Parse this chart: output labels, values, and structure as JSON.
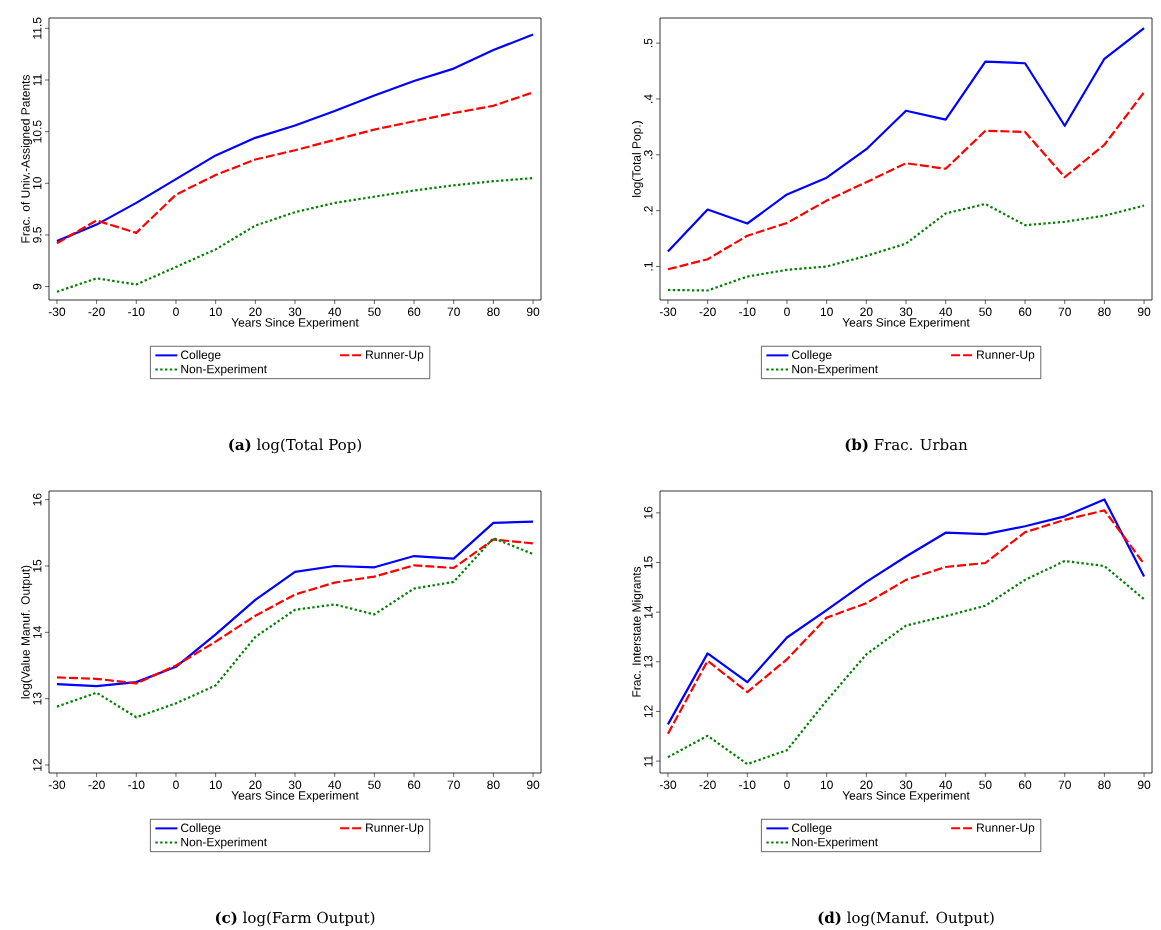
{
  "chart_data": [
    {
      "type": "line",
      "title": "**(a)** log(Total Pop)",
      "xlabel": "Years Since Experiment",
      "ylabel": "Frac. of Univ.-Assigned Patents",
      "legend": "bottom",
      "x": [
        -30,
        -20,
        -10,
        0,
        10,
        20,
        30,
        40,
        50,
        60,
        70,
        80,
        90
      ],
      "xlim": [
        -32,
        92
      ],
      "ylim": [
        8.87,
        11.6
      ],
      "xticks": [
        -30,
        -20,
        -10,
        0,
        10,
        20,
        30,
        40,
        50,
        60,
        70,
        80,
        90
      ],
      "yticks": [
        9,
        9.5,
        10,
        10.5,
        11,
        11.5
      ],
      "series": [
        {
          "name": "College",
          "color": "#0000ff",
          "line_style": "solid",
          "values": [
            9.44,
            9.6,
            9.81,
            10.04,
            10.27,
            10.44,
            10.56,
            10.7,
            10.85,
            10.99,
            11.11,
            11.29,
            11.44
          ]
        },
        {
          "name": "Runner-Up",
          "color": "#ff0000",
          "line_style": "dashed",
          "values": [
            9.42,
            9.64,
            9.52,
            9.89,
            10.08,
            10.23,
            10.32,
            10.42,
            10.52,
            10.6,
            10.68,
            10.75,
            10.88
          ]
        },
        {
          "name": "Non-Experiment",
          "color": "#008000",
          "line_style": "dotted",
          "values": [
            8.95,
            9.08,
            9.02,
            9.19,
            9.36,
            9.59,
            9.72,
            9.81,
            9.87,
            9.93,
            9.98,
            10.02,
            10.05
          ]
        }
      ]
    },
    {
      "type": "line",
      "title": "**(b)** Frac. Urban",
      "xlabel": "Years Since Experiment",
      "ylabel": "log(Total Pop.)",
      "legend": "bottom",
      "x": [
        -30,
        -20,
        -10,
        0,
        10,
        20,
        30,
        40,
        50,
        60,
        70,
        80,
        90
      ],
      "xlim": [
        -32,
        92
      ],
      "ylim": [
        0.04,
        0.545
      ],
      "xticks": [
        -30,
        -20,
        -10,
        0,
        10,
        20,
        30,
        40,
        50,
        60,
        70,
        80,
        90
      ],
      "yticks": [
        {
          "value": 0.1,
          "label": ".1"
        },
        {
          "value": 0.2,
          "label": ".2"
        },
        {
          "value": 0.3,
          "label": ".3"
        },
        {
          "value": 0.4,
          "label": ".4"
        },
        {
          "value": 0.5,
          "label": ".5"
        }
      ],
      "series": [
        {
          "name": "College",
          "color": "#0000ff",
          "line_style": "solid",
          "values": [
            0.127,
            0.202,
            0.177,
            0.229,
            0.259,
            0.31,
            0.379,
            0.363,
            0.467,
            0.464,
            0.352,
            0.472,
            0.527
          ]
        },
        {
          "name": "Runner-Up",
          "color": "#ff0000",
          "line_style": "dashed",
          "values": [
            0.095,
            0.113,
            0.155,
            0.178,
            0.218,
            0.251,
            0.285,
            0.275,
            0.343,
            0.341,
            0.26,
            0.318,
            0.412
          ]
        },
        {
          "name": "Non-Experiment",
          "color": "#008000",
          "line_style": "dotted",
          "values": [
            0.058,
            0.057,
            0.082,
            0.094,
            0.1,
            0.119,
            0.141,
            0.195,
            0.212,
            0.174,
            0.18,
            0.191,
            0.209
          ]
        }
      ]
    },
    {
      "type": "line",
      "title": "**(c)** log(Farm Output)",
      "xlabel": "Years Since Experiment",
      "ylabel": "log(Value Manuf. Output)",
      "legend": "bottom",
      "x": [
        -30,
        -20,
        -10,
        0,
        10,
        20,
        30,
        40,
        50,
        60,
        70,
        80,
        90
      ],
      "xlim": [
        -32,
        92
      ],
      "ylim": [
        11.88,
        16.13
      ],
      "xticks": [
        -30,
        -20,
        -10,
        0,
        10,
        20,
        30,
        40,
        50,
        60,
        70,
        80,
        90
      ],
      "yticks": [
        12,
        13,
        14,
        15,
        16
      ],
      "series": [
        {
          "name": "College",
          "color": "#0000ff",
          "line_style": "solid",
          "values": [
            13.22,
            13.19,
            13.25,
            13.48,
            13.97,
            14.49,
            14.91,
            15.0,
            14.98,
            15.15,
            15.11,
            15.65,
            15.67
          ]
        },
        {
          "name": "Runner-Up",
          "color": "#ff0000",
          "line_style": "dashed",
          "values": [
            13.32,
            13.3,
            13.23,
            13.5,
            13.86,
            14.25,
            14.57,
            14.75,
            14.84,
            15.01,
            14.97,
            15.4,
            15.34
          ]
        },
        {
          "name": "Non-Experiment",
          "color": "#008000",
          "line_style": "dotted",
          "values": [
            12.88,
            13.09,
            12.72,
            12.93,
            13.2,
            13.93,
            14.34,
            14.42,
            14.27,
            14.66,
            14.76,
            15.42,
            15.18
          ]
        }
      ]
    },
    {
      "type": "line",
      "title": "**(d)** log(Manuf. Output)",
      "xlabel": "Years Since Experiment",
      "ylabel": "Frac. Interstate Migrants",
      "legend": "bottom",
      "x": [
        -30,
        -20,
        -10,
        0,
        10,
        20,
        30,
        40,
        50,
        60,
        70,
        80,
        90
      ],
      "xlim": [
        -32,
        92
      ],
      "ylim": [
        10.76,
        16.44
      ],
      "xticks": [
        -30,
        -20,
        -10,
        0,
        10,
        20,
        30,
        40,
        50,
        60,
        70,
        80,
        90
      ],
      "yticks": [
        11,
        12,
        13,
        14,
        15,
        16
      ],
      "series": [
        {
          "name": "College",
          "color": "#0000ff",
          "line_style": "solid",
          "values": [
            11.74,
            13.17,
            12.59,
            13.49,
            14.04,
            14.61,
            15.12,
            15.6,
            15.57,
            15.73,
            15.93,
            16.27,
            14.72
          ]
        },
        {
          "name": "Runner-Up",
          "color": "#ff0000",
          "line_style": "dashed",
          "values": [
            11.55,
            13.02,
            12.39,
            13.05,
            13.89,
            14.18,
            14.65,
            14.91,
            14.99,
            15.61,
            15.86,
            16.05,
            14.97
          ]
        },
        {
          "name": "Non-Experiment",
          "color": "#008000",
          "line_style": "dotted",
          "values": [
            11.08,
            11.51,
            10.94,
            11.22,
            12.22,
            13.15,
            13.73,
            13.92,
            14.13,
            14.65,
            15.03,
            14.93,
            14.26
          ]
        }
      ]
    }
  ]
}
